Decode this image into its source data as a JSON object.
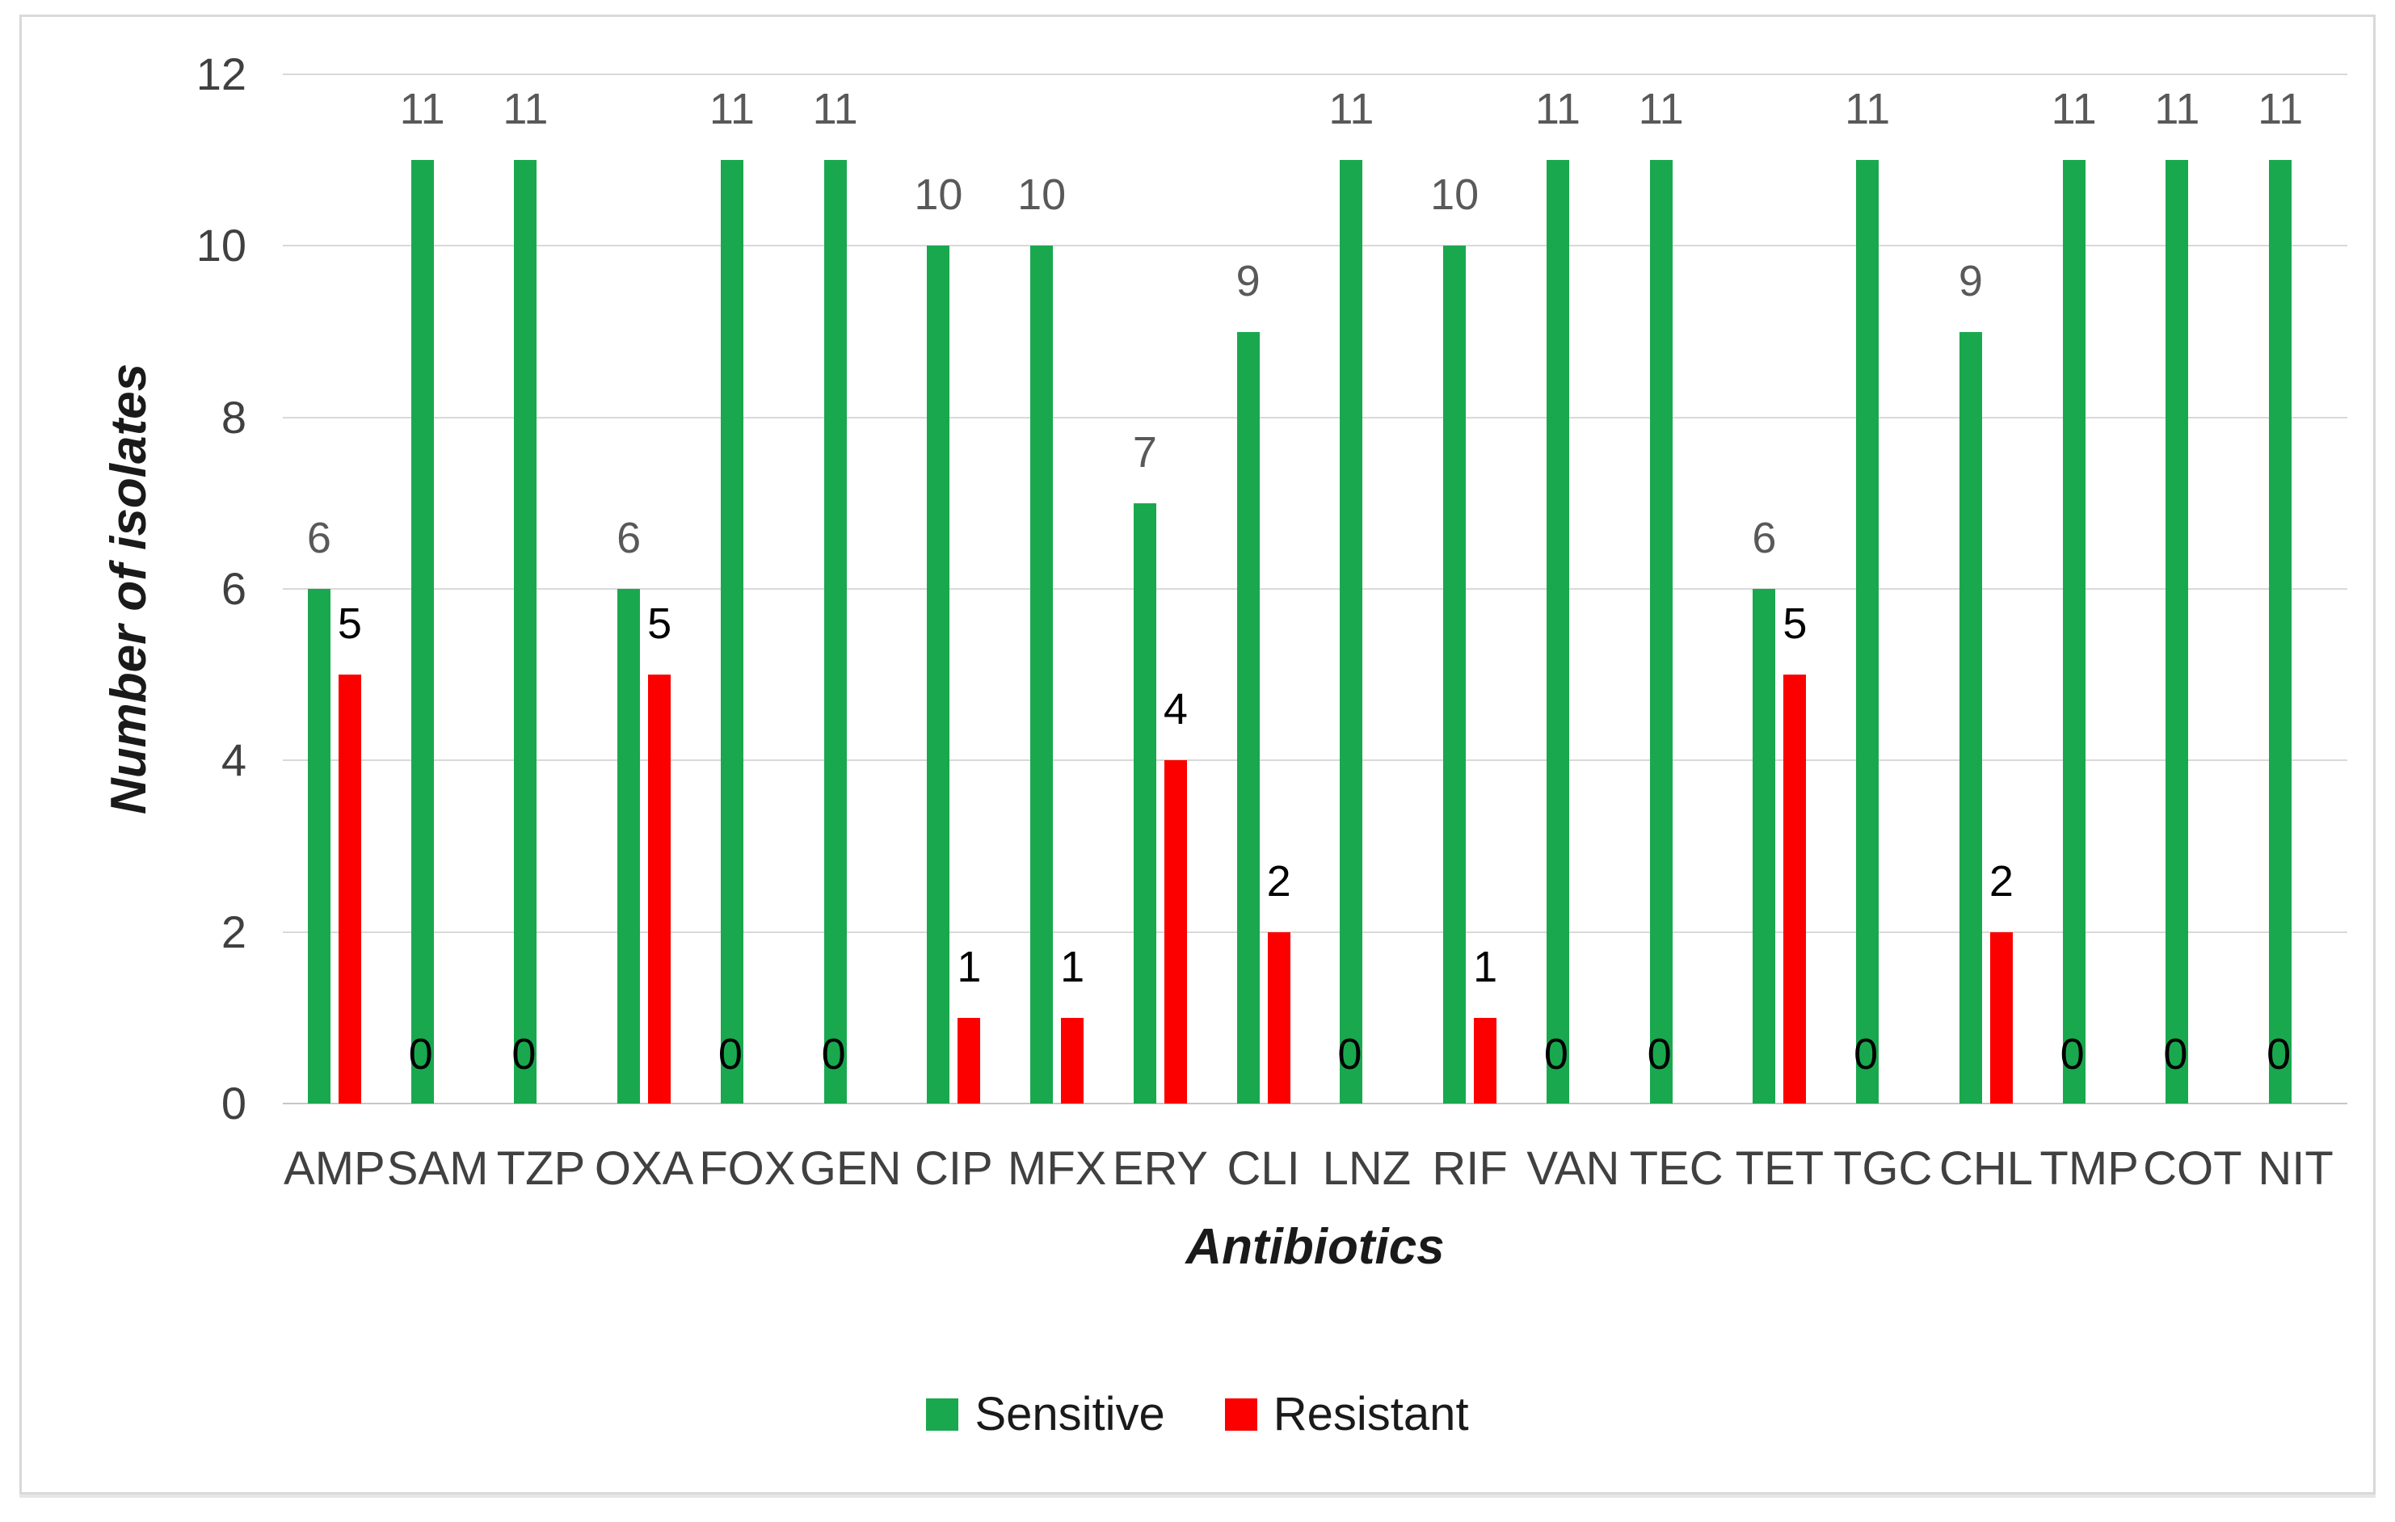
{
  "chart_data": {
    "type": "bar",
    "title": "",
    "categories": [
      "AMP",
      "SAM",
      "TZP",
      "OXA",
      "FOX",
      "GEN",
      "CIP",
      "MFX",
      "ERY",
      "CLI",
      "LNZ",
      "RIF",
      "VAN",
      "TEC",
      "TET",
      "TGC",
      "CHL",
      "TMP",
      "COT",
      "NIT"
    ],
    "series": [
      {
        "name": "Sensitive",
        "color": "#1aa84e",
        "values": [
          6,
          11,
          11,
          6,
          11,
          11,
          10,
          10,
          7,
          9,
          11,
          10,
          11,
          11,
          6,
          11,
          9,
          11,
          11,
          11
        ]
      },
      {
        "name": "Resistant",
        "color": "#fc0000",
        "values": [
          5,
          0,
          0,
          5,
          0,
          0,
          1,
          1,
          4,
          2,
          0,
          1,
          0,
          0,
          5,
          0,
          2,
          0,
          0,
          0
        ]
      }
    ],
    "xlabel": "Antibiotics",
    "ylabel": "Number of isolates",
    "ylim": [
      0,
      12
    ],
    "ytick_step": 2,
    "yticks": [
      0,
      2,
      4,
      6,
      8,
      10,
      12
    ],
    "grid": "horizontal",
    "legend_position": "bottom",
    "data_labels": "outside-end",
    "gridline_color": "#d9d9d9",
    "label_color_sensitive": "#595959",
    "label_color_resistant": "#000000"
  }
}
